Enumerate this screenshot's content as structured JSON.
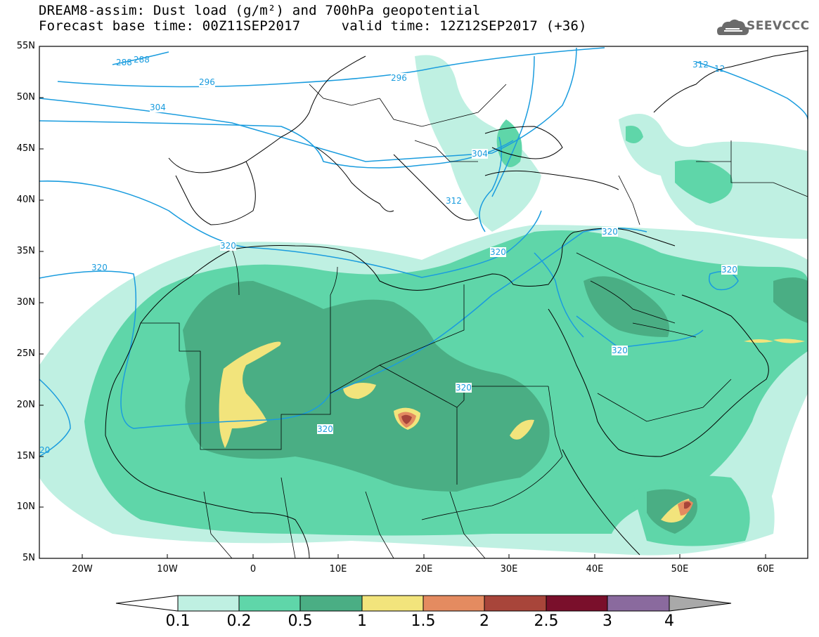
{
  "title": {
    "line1": "DREAM8-assim: Dust load (g/m²) and 700hPa geopotential",
    "line2": "Forecast base time: 00Z11SEP2017     valid time: 12Z12SEP2017 (+36)"
  },
  "logo": {
    "text": "SEEVCCC",
    "icon": "cloud-icon"
  },
  "axes": {
    "lat_labels": [
      "55N",
      "50N",
      "45N",
      "40N",
      "35N",
      "30N",
      "25N",
      "20N",
      "15N",
      "10N",
      "5N"
    ],
    "lon_labels": [
      "20W",
      "10W",
      "0",
      "10E",
      "20E",
      "30E",
      "40E",
      "50E",
      "60E"
    ]
  },
  "contour_labels": [
    "288",
    "288",
    "296",
    "296",
    "304",
    "304",
    "312",
    "312",
    "12",
    "320",
    "320",
    "320",
    "320",
    "320",
    "320",
    "320",
    "320",
    "20"
  ],
  "colorbar": {
    "ticks": [
      "0.1",
      "0.2",
      "0.5",
      "1",
      "1.5",
      "2",
      "2.5",
      "3",
      "4"
    ],
    "colors": [
      "#bff0e2",
      "#5fd6a9",
      "#4aae84",
      "#f2e47c",
      "#e48b60",
      "#a8453a",
      "#7a0f2b",
      "#8a6a9e"
    ],
    "under_color": "#ffffff",
    "over_color": "#a9a9a9"
  },
  "chart_data": {
    "type": "heatmap",
    "title": "DREAM8-assim: Dust load (g/m²) and 700hPa geopotential",
    "xlabel": "",
    "ylabel": "",
    "xlim": [
      -25,
      65
    ],
    "ylim": [
      5,
      55
    ],
    "x_ticks": [
      "20W",
      "10W",
      "0",
      "10E",
      "20E",
      "30E",
      "40E",
      "50E",
      "60E"
    ],
    "y_ticks": [
      "55N",
      "50N",
      "45N",
      "40N",
      "35N",
      "30N",
      "25N",
      "20N",
      "15N",
      "10N",
      "5N"
    ],
    "levels": [
      0.1,
      0.2,
      0.5,
      1,
      1.5,
      2,
      2.5,
      3,
      4
    ],
    "contour_levels_labeled": [
      288,
      296,
      304,
      312,
      320
    ]
  }
}
